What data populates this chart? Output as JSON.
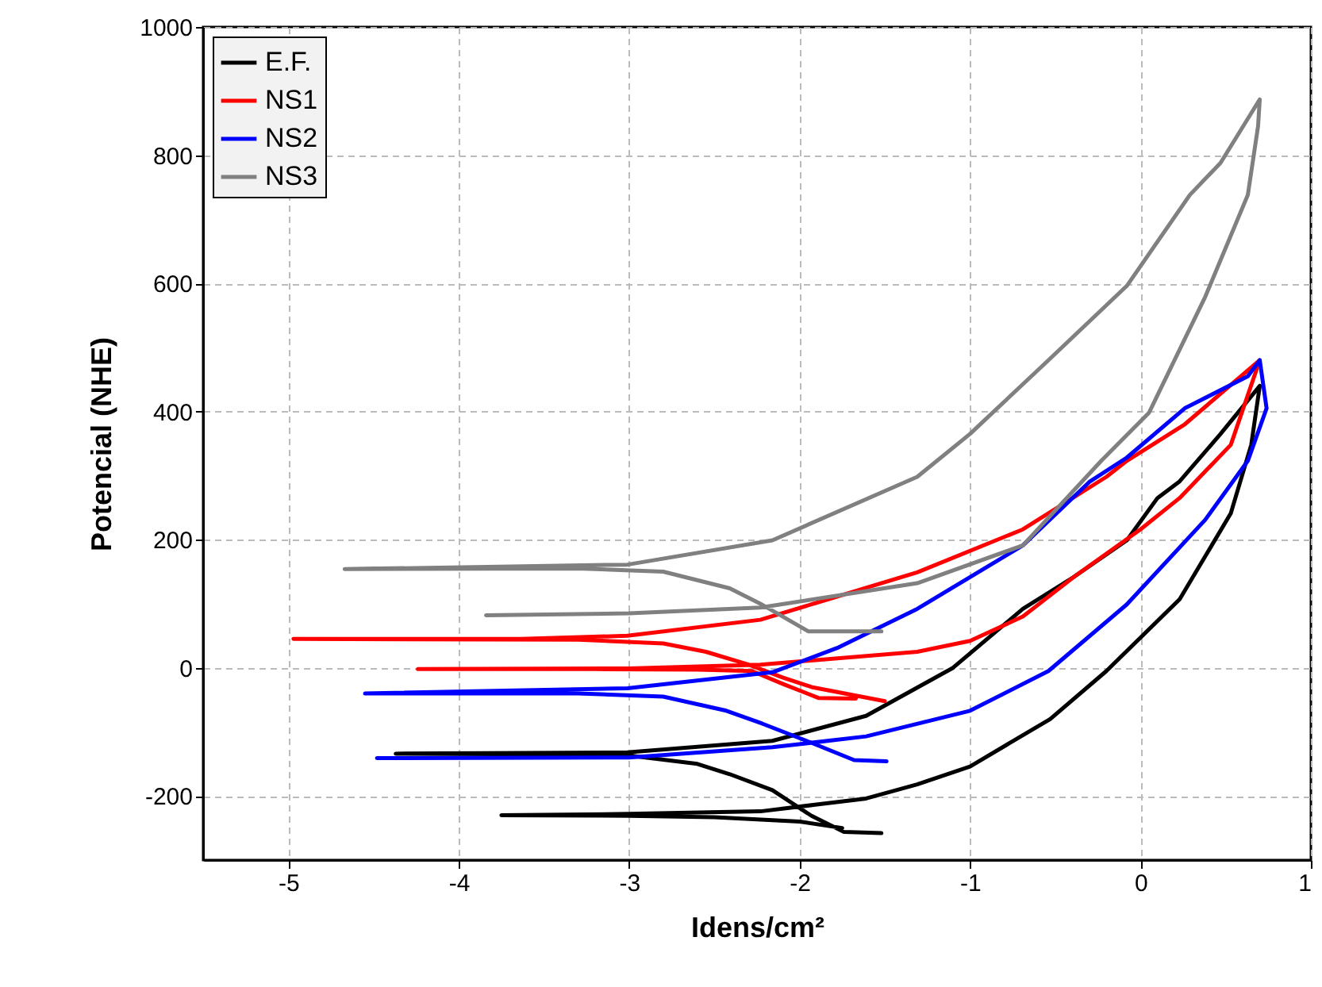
{
  "chart_data": {
    "type": "line",
    "xlabel": "Idens/cm²",
    "ylabel": "Potencial (NHE)",
    "xlim": [
      -5.5,
      1
    ],
    "ylim": [
      -300,
      1000
    ],
    "xticks": [
      -5,
      -4,
      -3,
      -2,
      -1,
      0,
      1
    ],
    "yticks": [
      -200,
      0,
      200,
      400,
      600,
      800,
      1000
    ],
    "grid": true,
    "legend": "top left",
    "series": [
      {
        "name": "E.F.",
        "color": "#000000",
        "x": [
          -1.75,
          -2.0,
          -2.5,
          -3.0,
          -3.75,
          -3.0,
          -2.23,
          -1.61,
          -1.31,
          -1.0,
          -0.53,
          -0.2,
          0.23,
          0.53,
          0.65,
          0.7,
          0.47,
          0.23,
          0.1,
          -0.08,
          -0.39,
          -0.69,
          -1.1,
          -1.61,
          -2.16,
          -3.01,
          -4.37,
          -3.5,
          -3.0,
          -2.6,
          -2.41,
          -2.16,
          -1.93,
          -1.74,
          -1.52
        ],
        "values": [
          -250,
          -240,
          -233,
          -231,
          -230,
          -228,
          -224,
          -204,
          -182,
          -154,
          -80,
          -5,
          107,
          241,
          348,
          440,
          365,
          291,
          265,
          199,
          142,
          92,
          0,
          -75,
          -114,
          -132,
          -134,
          -135,
          -137,
          -150,
          -166,
          -191,
          -231,
          -256,
          -258
        ]
      },
      {
        "name": "NS1",
        "color": "#ff0000",
        "x": [
          -1.67,
          -1.89,
          -2.1,
          -2.28,
          -2.6,
          -3.2,
          -4.24,
          -3.0,
          -2.23,
          -1.31,
          -1.0,
          -0.69,
          -0.39,
          0.0,
          0.23,
          0.53,
          0.7,
          0.26,
          -0.08,
          -0.2,
          -0.69,
          -1.31,
          -1.93,
          -2.23,
          -3.01,
          -3.63,
          -4.97,
          -3.3,
          -2.8,
          -2.55,
          -2.3,
          -2.1,
          -1.93,
          -1.5
        ],
        "values": [
          -48,
          -47,
          -25,
          -5,
          -3,
          -2,
          -2,
          -1,
          5,
          25,
          42,
          80,
          142,
          216,
          265,
          348,
          480,
          380,
          323,
          298,
          216,
          149,
          99,
          75,
          50,
          45,
          45,
          44,
          38,
          25,
          5,
          -15,
          -30,
          -52
        ]
      },
      {
        "name": "NS2",
        "color": "#0000ff",
        "x": [
          -1.49,
          -1.68,
          -1.93,
          -2.22,
          -2.43,
          -2.8,
          -3.3,
          -4.55,
          -3.01,
          -2.16,
          -1.77,
          -1.31,
          -0.69,
          -0.3,
          -0.08,
          0.26,
          0.63,
          0.7,
          0.74,
          0.63,
          0.38,
          -0.08,
          -0.54,
          -1.0,
          -1.61,
          -2.16,
          -3.0,
          -4.48
        ],
        "values": [
          -146,
          -144,
          -117,
          -87,
          -67,
          -45,
          -40,
          -40,
          -32,
          -7,
          32,
          92,
          191,
          290,
          328,
          405,
          455,
          480,
          405,
          323,
          231,
          99,
          -5,
          -67,
          -107,
          -124,
          -140,
          -141
        ]
      },
      {
        "name": "NS3",
        "color": "#808080",
        "x": [
          -1.52,
          -1.95,
          -2.23,
          -2.41,
          -2.8,
          -3.3,
          -4.67,
          -3.01,
          -2.16,
          -1.31,
          -1.0,
          -0.54,
          -0.08,
          0.29,
          0.47,
          0.7,
          0.69,
          0.63,
          0.38,
          0.05,
          -0.23,
          -0.69,
          -1.31,
          -2.23,
          -3.0,
          -3.84
        ],
        "values": [
          57,
          57,
          100,
          124,
          150,
          155,
          154,
          161,
          199,
          298,
          365,
          480,
          596,
          738,
          788,
          887,
          845,
          738,
          579,
          398,
          323,
          191,
          132,
          94,
          85,
          82
        ]
      }
    ]
  }
}
